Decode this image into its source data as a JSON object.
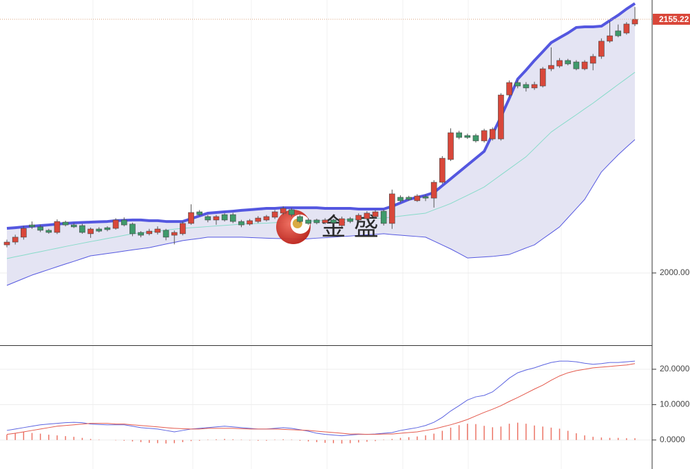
{
  "chart_data": [
    {
      "type": "candlestick",
      "ylim": [
        1955.8,
        2167.0
      ],
      "yticks": [
        {
          "value": 2000,
          "label": "2000.00"
        }
      ],
      "grid": true,
      "up_color": "#d9473a",
      "down_color": "#3f9a6b",
      "last_price_line": true,
      "watermark": "金 盛",
      "open": [
        2017.2,
        2018.9,
        2021.9,
        2029.4,
        2028.2,
        2026.1,
        2024.8,
        2031.1,
        2029.4,
        2029.0,
        2024.0,
        2026.9,
        2027.7,
        2027.3,
        2032.4,
        2029.9,
        2024.8,
        2024.0,
        2024.8,
        2026.1,
        2023.1,
        2024.0,
        2030.3,
        2037.4,
        2034.5,
        2032.4,
        2035.7,
        2035.7,
        2031.5,
        2029.9,
        2031.5,
        2032.4,
        2034.1,
        2036.6,
        2038.7,
        2034.5,
        2032.4,
        2032.4,
        2030.7,
        2032.4,
        2029.0,
        2033.2,
        2032.4,
        2033.2,
        2034.5,
        2037.8,
        2030.3,
        2046.3,
        2046.3,
        2044.2,
        2046.7,
        2045.8,
        2055.5,
        2069.4,
        2085.8,
        2084.1,
        2084.1,
        2080.8,
        2082.0,
        2082.0,
        2108.9,
        2116.5,
        2115.3,
        2113.2,
        2114.4,
        2124.9,
        2126.6,
        2130.0,
        2129.1,
        2124.9,
        2128.3,
        2132.5,
        2141.8,
        2148.1,
        2146.8,
        2152.3
      ],
      "high": [
        2020.4,
        2023.4,
        2028.8,
        2031.5,
        2029.5,
        2027.0,
        2032.8,
        2032.0,
        2030.5,
        2030.0,
        2027.8,
        2028.0,
        2028.6,
        2033.5,
        2034.0,
        2030.8,
        2025.6,
        2027.0,
        2028.5,
        2027.0,
        2026.0,
        2031.5,
        2042.0,
        2038.5,
        2035.5,
        2035.5,
        2036.5,
        2036.8,
        2032.5,
        2033.0,
        2034.8,
        2035.5,
        2038.5,
        2040.8,
        2039.8,
        2035.5,
        2033.5,
        2033.2,
        2033.5,
        2033.2,
        2034.5,
        2034.2,
        2036.5,
        2037.8,
        2038.5,
        2038.8,
        2051.0,
        2047.5,
        2047.2,
        2048.2,
        2048.0,
        2056.8,
        2071.5,
        2088.5,
        2087.0,
        2085.2,
        2085.2,
        2088.2,
        2089.0,
        2110.0,
        2117.8,
        2118.0,
        2116.8,
        2117.0,
        2126.0,
        2138.0,
        2131.5,
        2131.0,
        2130.2,
        2130.2,
        2134.0,
        2143.5,
        2154.0,
        2152.0,
        2153.5,
        2162.7
      ],
      "low": [
        2015.7,
        2017.4,
        2020.4,
        2027.0,
        2025.0,
        2024.0,
        2023.8,
        2028.5,
        2027.5,
        2024.0,
        2021.5,
        2024.8,
        2025.5,
        2026.5,
        2028.5,
        2022.5,
        2021.8,
        2023.0,
        2023.5,
        2020.0,
        2017.5,
        2023.0,
        2029.5,
        2034.8,
        2031.0,
        2029.5,
        2031.5,
        2030.5,
        2028.0,
        2029.0,
        2030.5,
        2031.5,
        2033.0,
        2035.5,
        2034.5,
        2030.5,
        2029.5,
        2029.8,
        2029.8,
        2029.8,
        2028.0,
        2030.5,
        2031.5,
        2032.2,
        2033.5,
        2029.0,
        2027.0,
        2043.0,
        2044.2,
        2043.5,
        2044.0,
        2040.0,
        2054.5,
        2068.5,
        2081.8,
        2082.0,
        2079.8,
        2079.8,
        2081.0,
        2081.0,
        2107.5,
        2113.0,
        2111.0,
        2112.0,
        2113.5,
        2123.5,
        2125.5,
        2127.0,
        2124.0,
        2124.0,
        2124.0,
        2131.0,
        2140.8,
        2144.2,
        2145.8,
        2151.0
      ],
      "close": [
        2018.9,
        2021.9,
        2027.3,
        2028.2,
        2026.1,
        2024.8,
        2031.5,
        2029.4,
        2028.2,
        2024.8,
        2026.9,
        2025.6,
        2026.5,
        2032.4,
        2029.4,
        2024.0,
        2023.1,
        2025.6,
        2026.9,
        2021.9,
        2024.8,
        2030.3,
        2037.0,
        2035.7,
        2032.4,
        2034.5,
        2032.4,
        2031.5,
        2029.4,
        2032.0,
        2033.6,
        2034.5,
        2037.4,
        2039.5,
        2035.7,
        2031.5,
        2030.3,
        2030.7,
        2032.4,
        2030.7,
        2033.2,
        2031.5,
        2035.3,
        2036.6,
        2037.4,
        2030.3,
        2048.4,
        2044.2,
        2045.0,
        2047.1,
        2045.8,
        2055.5,
        2070.2,
        2085.8,
        2082.9,
        2082.9,
        2080.8,
        2087.1,
        2087.9,
        2108.9,
        2116.5,
        2114.4,
        2113.2,
        2115.3,
        2124.9,
        2127.0,
        2130.0,
        2127.9,
        2124.9,
        2129.1,
        2132.5,
        2141.8,
        2145.1,
        2145.1,
        2152.3,
        2155.22
      ],
      "band_fill": "#e4e4f3",
      "bands": [
        {
          "color": "#5457e0",
          "width": 4,
          "values": [
            2027.3,
            2027.7,
            2028.2,
            2028.6,
            2029.0,
            2029.4,
            2029.9,
            2030.3,
            2030.7,
            2030.9,
            2031.1,
            2031.3,
            2031.5,
            2032.0,
            2032.2,
            2032.4,
            2032.4,
            2032.0,
            2032.0,
            2031.5,
            2031.5,
            2031.5,
            2033.2,
            2034.9,
            2036.6,
            2037.0,
            2037.4,
            2037.8,
            2038.3,
            2038.7,
            2039.1,
            2039.5,
            2039.5,
            2039.9,
            2039.9,
            2039.9,
            2039.9,
            2039.9,
            2039.5,
            2039.5,
            2039.5,
            2039.5,
            2039.1,
            2039.1,
            2039.1,
            2039.1,
            2040.8,
            2042.9,
            2045.0,
            2046.3,
            2047.5,
            2049.2,
            2053.4,
            2057.6,
            2061.8,
            2066.0,
            2070.2,
            2074.4,
            2085.0,
            2095.5,
            2106.8,
            2118.6,
            2124.1,
            2130.0,
            2135.4,
            2140.9,
            2143.9,
            2146.8,
            2150.2,
            2150.6,
            2150.6,
            2151.0,
            2154.4,
            2157.7,
            2161.5,
            2164.9
          ]
        },
        {
          "color": "#86dbc9",
          "width": 1,
          "values": [
            2008.8,
            2009.9,
            2010.9,
            2012.0,
            2013.0,
            2014.1,
            2015.1,
            2016.2,
            2017.2,
            2018.2,
            2019.2,
            2020.1,
            2021.1,
            2022.0,
            2023.0,
            2024.0,
            2024.5,
            2025.1,
            2025.6,
            2026.2,
            2026.8,
            2027.3,
            2027.7,
            2028.0,
            2028.4,
            2028.8,
            2029.1,
            2029.5,
            2029.9,
            2030.1,
            2030.3,
            2030.5,
            2030.8,
            2031.0,
            2031.2,
            2031.5,
            2031.7,
            2031.9,
            2032.2,
            2032.4,
            2032.6,
            2032.8,
            2033.0,
            2033.2,
            2033.4,
            2033.6,
            2034.2,
            2034.8,
            2035.4,
            2036.0,
            2036.6,
            2038.6,
            2040.5,
            2042.5,
            2045.0,
            2047.5,
            2050.0,
            2052.6,
            2056.3,
            2060.0,
            2063.7,
            2067.4,
            2071.1,
            2076.1,
            2081.2,
            2086.2,
            2089.8,
            2093.3,
            2096.8,
            2100.4,
            2103.9,
            2107.7,
            2111.5,
            2115.3,
            2119.0,
            2122.8
          ]
        },
        {
          "color": "#5457e0",
          "width": 1,
          "values": [
            1992.4,
            1994.5,
            1996.6,
            1998.7,
            2000.4,
            2002.1,
            2003.8,
            2005.5,
            2007.1,
            2008.8,
            2010.5,
            2011.2,
            2011.9,
            2012.6,
            2013.4,
            2014.1,
            2014.8,
            2015.5,
            2016.6,
            2017.7,
            2018.7,
            2019.8,
            2020.5,
            2021.1,
            2021.9,
            2021.9,
            2021.9,
            2021.9,
            2021.9,
            2021.7,
            2021.5,
            2021.3,
            2021.1,
            2021.0,
            2020.8,
            2020.6,
            2020.9,
            2021.3,
            2021.6,
            2021.9,
            2022.3,
            2022.6,
            2023.0,
            2023.3,
            2023.6,
            2024.0,
            2023.5,
            2023.1,
            2022.7,
            2022.3,
            2021.9,
            2019.5,
            2017.1,
            2014.7,
            2012.0,
            2009.2,
            2009.5,
            2009.8,
            2010.1,
            2010.7,
            2011.3,
            2013.3,
            2015.3,
            2017.2,
            2020.9,
            2024.5,
            2028.2,
            2033.8,
            2039.4,
            2045.0,
            2053.4,
            2061.8,
            2067.1,
            2072.3,
            2077.0,
            2081.6
          ]
        }
      ]
    },
    {
      "type": "macd",
      "ylim": [
        -8.2,
        26.6
      ],
      "yticks": [
        {
          "value": 20,
          "label": "20.0000"
        },
        {
          "value": 10,
          "label": "10.0000"
        },
        {
          "value": 0,
          "label": "0.0000"
        }
      ],
      "grid": true,
      "series": [
        {
          "color": "#5b63e0",
          "values": [
            2.7,
            3.1,
            3.5,
            3.9,
            4.3,
            4.5,
            4.7,
            4.9,
            5.0,
            4.9,
            4.5,
            4.4,
            4.3,
            4.3,
            4.3,
            3.9,
            3.5,
            3.3,
            3.1,
            2.7,
            2.3,
            2.7,
            3.1,
            3.3,
            3.5,
            3.7,
            3.9,
            3.7,
            3.5,
            3.3,
            3.1,
            3.1,
            3.3,
            3.5,
            3.3,
            2.9,
            2.5,
            1.9,
            1.6,
            1.4,
            1.2,
            1.4,
            1.6,
            1.6,
            1.7,
            1.9,
            2.1,
            2.7,
            3.1,
            3.5,
            4.1,
            5.0,
            6.4,
            8.2,
            9.7,
            11.3,
            12.2,
            12.6,
            13.6,
            15.5,
            17.5,
            19.0,
            19.8,
            20.4,
            21.2,
            21.9,
            22.3,
            22.3,
            22.1,
            21.7,
            21.4,
            21.6,
            21.9,
            21.9,
            22.1,
            22.3
          ]
        },
        {
          "color": "#e4594c",
          "values": [
            1.6,
            1.9,
            2.3,
            2.7,
            3.1,
            3.5,
            3.9,
            4.1,
            4.3,
            4.5,
            4.7,
            4.7,
            4.7,
            4.5,
            4.5,
            4.3,
            4.1,
            3.9,
            3.7,
            3.5,
            3.3,
            3.2,
            3.1,
            3.1,
            3.3,
            3.3,
            3.3,
            3.3,
            3.2,
            3.1,
            3.1,
            3.1,
            3.1,
            3.0,
            2.9,
            2.8,
            2.7,
            2.5,
            2.3,
            2.1,
            1.9,
            1.7,
            1.7,
            1.6,
            1.6,
            1.7,
            1.7,
            1.9,
            2.1,
            2.3,
            2.7,
            3.1,
            3.7,
            4.3,
            5.0,
            5.8,
            6.8,
            7.8,
            8.7,
            9.7,
            10.9,
            12.0,
            13.2,
            14.4,
            15.5,
            16.9,
            18.1,
            19.0,
            19.6,
            20.0,
            20.4,
            20.6,
            20.8,
            21.0,
            21.2,
            21.6
          ]
        }
      ],
      "histogram": {
        "color": "#ec7466",
        "values": [
          1.5,
          2.0,
          2.3,
          2.0,
          1.8,
          1.5,
          1.3,
          1.1,
          0.9,
          0.6,
          0.3,
          0.1,
          0.0,
          -0.1,
          -0.2,
          -0.4,
          -0.6,
          -0.8,
          -0.9,
          -1.0,
          -0.9,
          -0.6,
          -0.3,
          -0.2,
          0.1,
          0.2,
          0.3,
          0.2,
          0.1,
          -0.1,
          -0.2,
          -0.2,
          0.1,
          0.2,
          0.1,
          -0.2,
          -0.4,
          -0.6,
          -0.8,
          -0.9,
          -1.0,
          -0.9,
          -0.7,
          -0.5,
          -0.3,
          0.1,
          0.3,
          0.6,
          0.8,
          1.0,
          1.3,
          1.8,
          2.6,
          3.5,
          4.2,
          4.6,
          4.5,
          4.0,
          3.6,
          3.8,
          4.6,
          4.9,
          4.6,
          4.1,
          3.8,
          3.5,
          3.2,
          2.6,
          1.9,
          1.3,
          0.9,
          0.7,
          0.6,
          0.6,
          0.5,
          0.5
        ]
      }
    }
  ]
}
